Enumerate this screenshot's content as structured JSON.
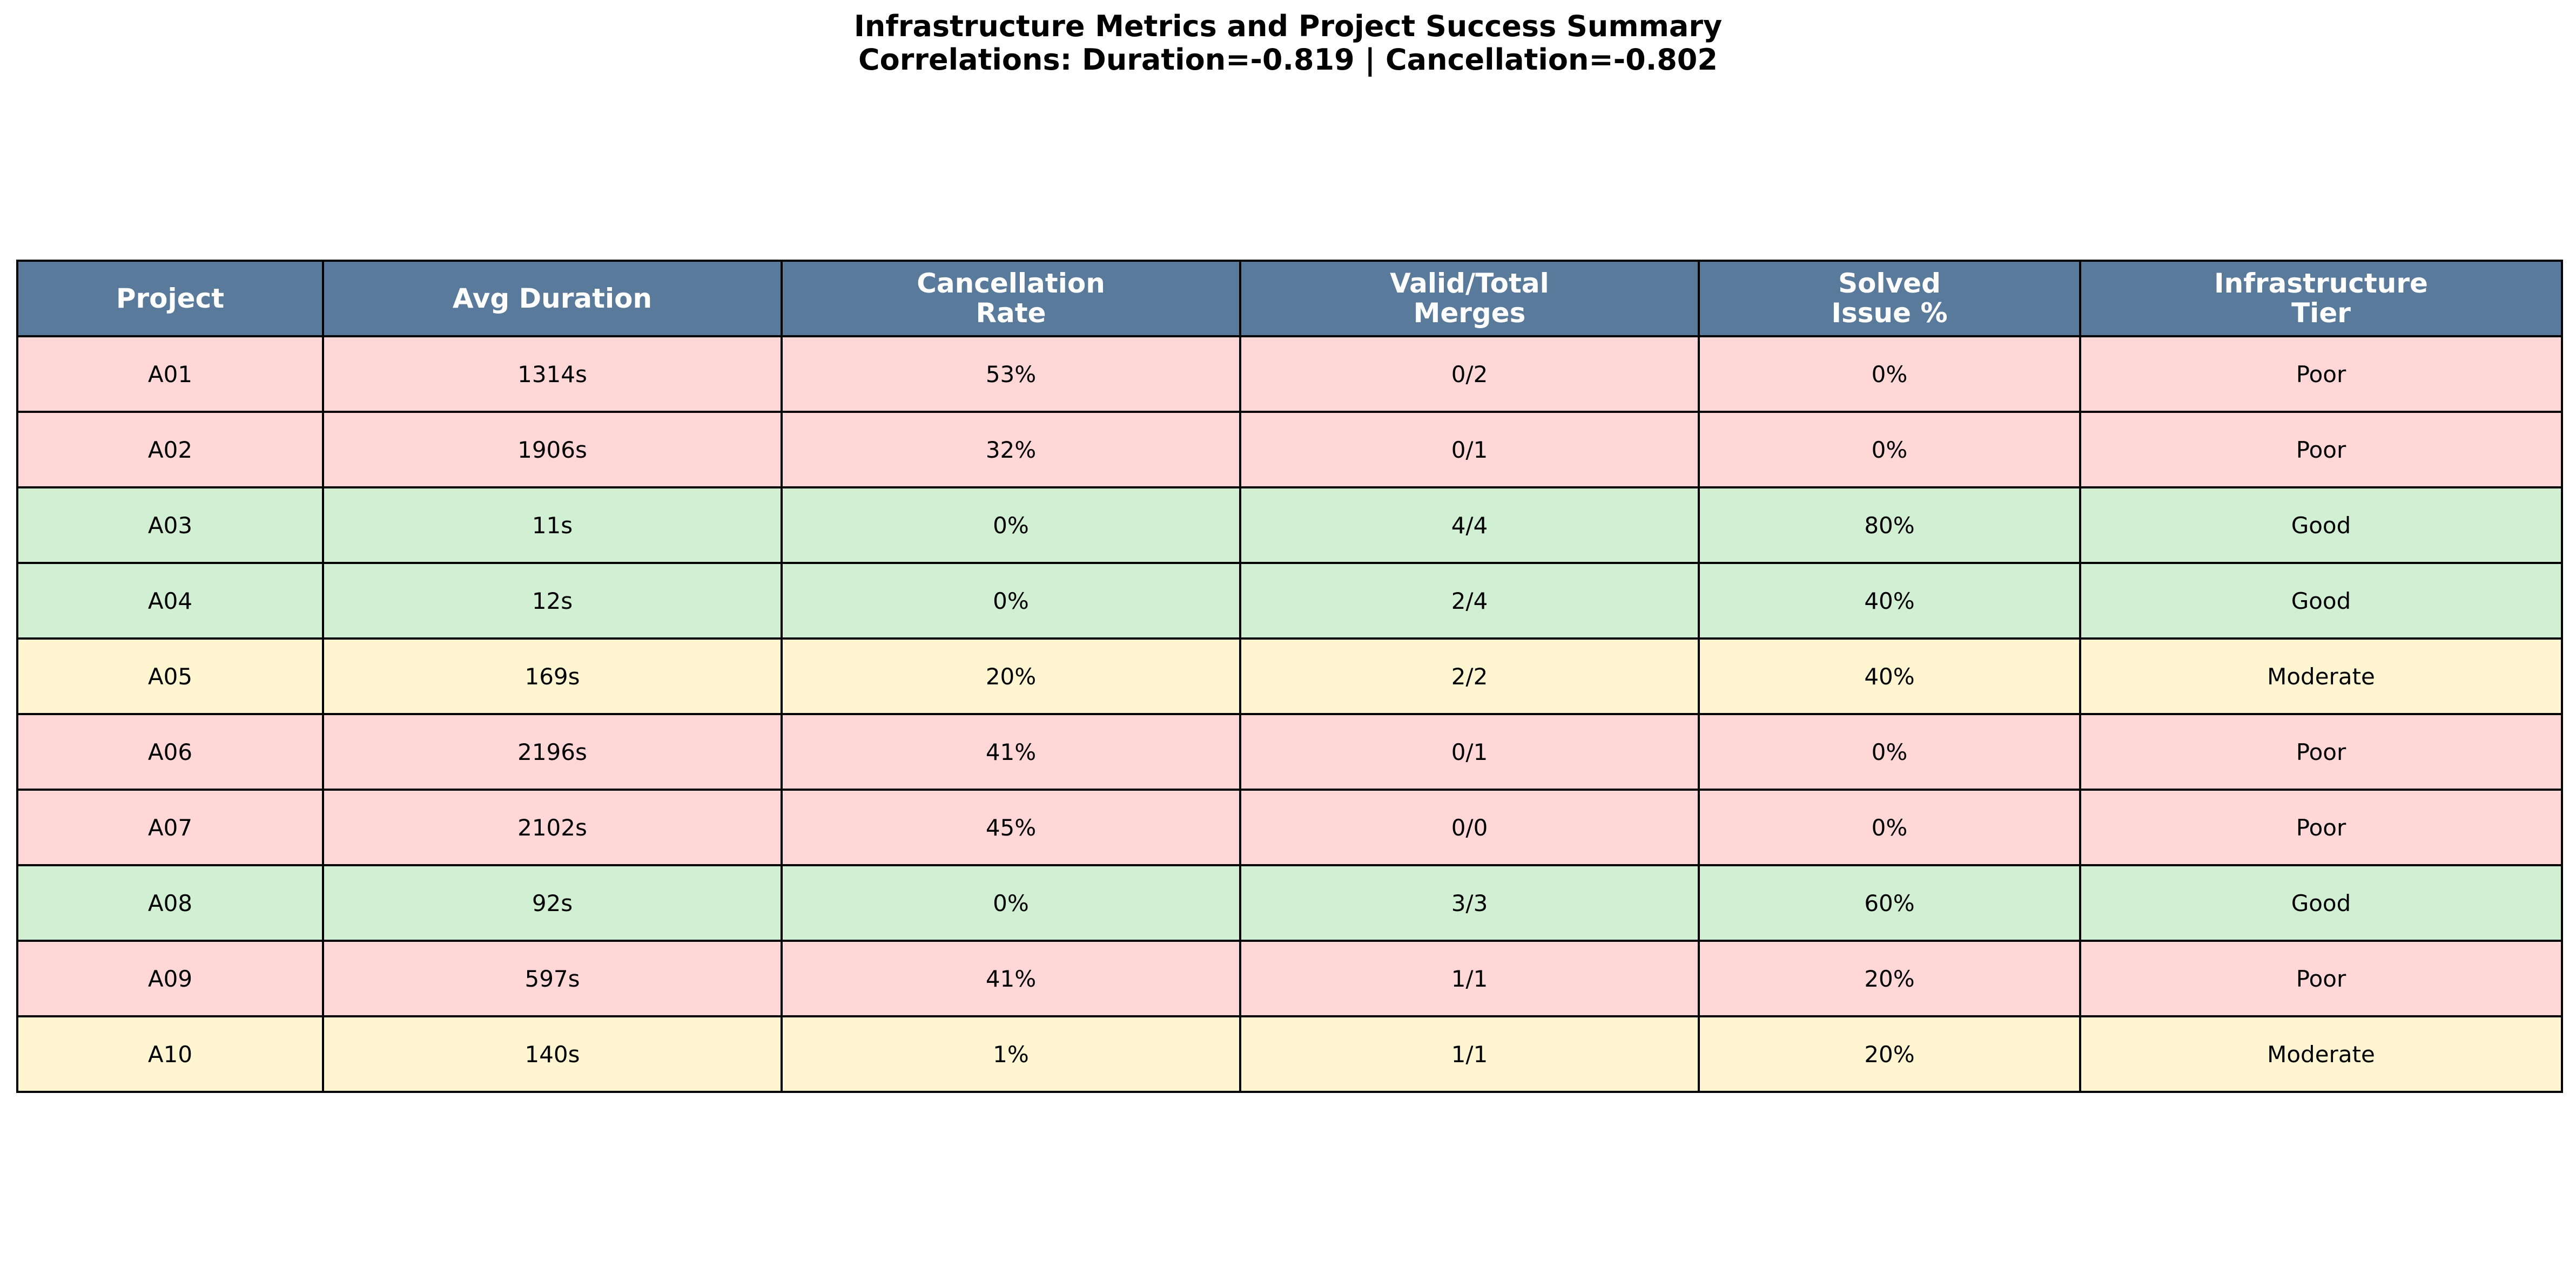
{
  "chart_data": {
    "type": "table",
    "title": "Infrastructure Metrics and Project Success Summary",
    "subtitle": "Correlations: Duration=-0.819 | Cancellation=-0.802",
    "columns": [
      {
        "lines": [
          "Project"
        ]
      },
      {
        "lines": [
          "Avg Duration"
        ]
      },
      {
        "lines": [
          "Cancellation",
          "Rate"
        ]
      },
      {
        "lines": [
          "Valid/Total",
          "Merges"
        ]
      },
      {
        "lines": [
          "Solved",
          "Issue %"
        ]
      },
      {
        "lines": [
          "Infrastructure",
          "Tier"
        ]
      }
    ],
    "rows": [
      {
        "cells": [
          "A01",
          "1314s",
          "53%",
          "0/2",
          "0%",
          "Poor"
        ],
        "tier": "Poor"
      },
      {
        "cells": [
          "A02",
          "1906s",
          "32%",
          "0/1",
          "0%",
          "Poor"
        ],
        "tier": "Poor"
      },
      {
        "cells": [
          "A03",
          "11s",
          "0%",
          "4/4",
          "80%",
          "Good"
        ],
        "tier": "Good"
      },
      {
        "cells": [
          "A04",
          "12s",
          "0%",
          "2/4",
          "40%",
          "Good"
        ],
        "tier": "Good"
      },
      {
        "cells": [
          "A05",
          "169s",
          "20%",
          "2/2",
          "40%",
          "Moderate"
        ],
        "tier": "Moderate"
      },
      {
        "cells": [
          "A06",
          "2196s",
          "41%",
          "0/1",
          "0%",
          "Poor"
        ],
        "tier": "Poor"
      },
      {
        "cells": [
          "A07",
          "2102s",
          "45%",
          "0/0",
          "0%",
          "Poor"
        ],
        "tier": "Poor"
      },
      {
        "cells": [
          "A08",
          "92s",
          "0%",
          "3/3",
          "60%",
          "Good"
        ],
        "tier": "Good"
      },
      {
        "cells": [
          "A09",
          "597s",
          "41%",
          "1/1",
          "20%",
          "Poor"
        ],
        "tier": "Poor"
      },
      {
        "cells": [
          "A10",
          "140s",
          "1%",
          "1/1",
          "20%",
          "Moderate"
        ],
        "tier": "Moderate"
      }
    ]
  },
  "colors": {
    "header_bg": "#5a7a9c",
    "header_text": "#ffffff",
    "tier_poor": "#ffd7d7",
    "tier_good": "#d1efd3",
    "tier_moderate": "#fff6d1",
    "border": "#000000"
  }
}
